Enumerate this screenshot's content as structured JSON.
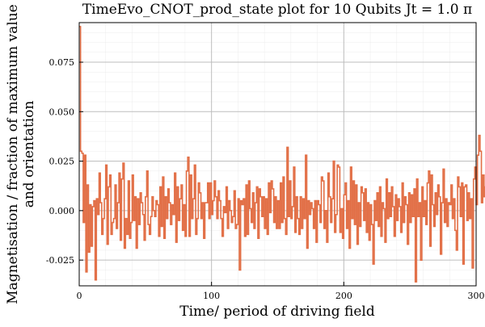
{
  "chart_data": {
    "type": "line",
    "step": true,
    "title": "TimeEvo_CNOT_prod_state plot for 10 Qubits Jt = 1.0 π",
    "xlabel": "Time/ period of driving field",
    "ylabel_lines": [
      "Magnetisation / fraction of maximum value",
      "and orientation"
    ],
    "xlim": [
      0,
      300
    ],
    "ylim": [
      -0.038,
      0.095
    ],
    "xticks": [
      0,
      100,
      200,
      300
    ],
    "xtick_labels": [
      "0",
      "100",
      "200",
      "300"
    ],
    "yticks": [
      -0.025,
      0.0,
      0.025,
      0.05,
      0.075
    ],
    "ytick_labels": [
      "-0.025",
      "0.000",
      "0.025",
      "0.050",
      "0.075"
    ],
    "grid": true,
    "minor_grid": true,
    "legend": "none",
    "series": [
      {
        "color": "#e26f46",
        "x_start": 0,
        "x_step": 1,
        "values": [
          0.093,
          0.03,
          0.029,
          -0.006,
          0.028,
          -0.031,
          0.013,
          -0.021,
          0.003,
          -0.018,
          0.002,
          0.005,
          -0.035,
          0.006,
          -0.002,
          0.019,
          0.004,
          -0.012,
          -0.004,
          0.006,
          0.023,
          -0.017,
          0.012,
          0.018,
          -0.012,
          -0.006,
          -0.004,
          0.013,
          -0.009,
          0.004,
          0.019,
          -0.015,
          0.016,
          0.024,
          -0.019,
          -0.004,
          -0.012,
          0.015,
          -0.014,
          -0.006,
          0.018,
          -0.005,
          0.007,
          -0.019,
          0.006,
          -0.007,
          0.009,
          0.004,
          -0.002,
          -0.015,
          0.007,
          0.02,
          -0.007,
          -0.012,
          -0.003,
          0.007,
          0.0,
          -0.003,
          0.005,
          0.003,
          -0.013,
          0.012,
          -0.008,
          0.017,
          -0.014,
          0.007,
          -0.004,
          0.011,
          0.004,
          -0.007,
          0.003,
          -0.002,
          0.019,
          -0.016,
          0.012,
          -0.005,
          0.006,
          0.013,
          -0.01,
          0.003,
          -0.013,
          0.02,
          0.027,
          -0.013,
          0.018,
          -0.004,
          0.006,
          0.023,
          -0.012,
          -0.004,
          0.014,
          0.009,
          -0.004,
          0.004,
          -0.014,
          0.004,
          0.004,
          0.014,
          -0.004,
          0.014,
          -0.002,
          0.005,
          0.015,
          0.007,
          -0.004,
          0.01,
          0.005,
          -0.004,
          -0.013,
          0.002,
          -0.001,
          0.012,
          -0.009,
          0.005,
          0.0,
          -0.006,
          -0.003,
          0.01,
          -0.009,
          -0.007,
          0.006,
          -0.03,
          0.005,
          0.003,
          0.006,
          -0.013,
          0.013,
          -0.012,
          0.015,
          0.001,
          -0.006,
          0.009,
          -0.009,
          0.004,
          0.012,
          -0.014,
          0.011,
          0.007,
          -0.003,
          0.007,
          -0.009,
          0.006,
          -0.012,
          0.014,
          -0.001,
          0.015,
          0.011,
          -0.006,
          0.007,
          -0.009,
          0.005,
          -0.009,
          0.014,
          -0.006,
          0.017,
          -0.004,
          -0.012,
          0.032,
          -0.003,
          0.015,
          -0.004,
          0.002,
          0.022,
          -0.011,
          0.007,
          -0.004,
          -0.012,
          0.007,
          -0.009,
          0.006,
          -0.004,
          0.028,
          -0.019,
          0.005,
          -0.002,
          0.004,
          0.001,
          -0.009,
          0.005,
          -0.016,
          0.005,
          0.003,
          -0.006,
          0.017,
          0.015,
          -0.009,
          0.0,
          -0.016,
          0.019,
          0.007,
          -0.006,
          0.006,
          0.025,
          -0.011,
          -0.002,
          0.023,
          0.022,
          -0.011,
          0.001,
          -0.014,
          0.008,
          0.014,
          -0.009,
          0.005,
          -0.019,
          0.022,
          -0.004,
          0.015,
          -0.007,
          0.013,
          -0.017,
          0.004,
          -0.008,
          0.012,
          0.009,
          -0.005,
          0.011,
          -0.011,
          0.004,
          -0.015,
          0.003,
          -0.007,
          -0.027,
          0.005,
          -0.005,
          0.009,
          -0.008,
          0.012,
          -0.013,
          0.004,
          0.001,
          -0.016,
          0.016,
          -0.004,
          0.009,
          -0.003,
          0.012,
          0.002,
          -0.013,
          0.008,
          -0.005,
          0.006,
          0.002,
          -0.011,
          0.014,
          -0.006,
          0.007,
          0.003,
          -0.017,
          0.009,
          -0.006,
          0.008,
          -0.003,
          0.011,
          -0.036,
          0.016,
          -0.003,
          0.004,
          -0.025,
          0.012,
          -0.003,
          0.005,
          -0.007,
          0.014,
          0.02,
          -0.018,
          0.018,
          0.003,
          -0.008,
          0.009,
          -0.002,
          0.013,
          0.007,
          -0.022,
          0.004,
          0.021,
          -0.006,
          0.006,
          -0.008,
          0.004,
          0.003,
          0.013,
          -0.004,
          0.006,
          -0.01,
          -0.02,
          0.017,
          0.012,
          -0.003,
          0.014,
          -0.027,
          0.012,
          0.013,
          -0.005,
          0.009,
          -0.004,
          0.006,
          -0.029,
          0.016,
          0.022,
          0.003,
          0.028,
          0.038,
          0.03,
          0.004,
          0.018,
          0.007,
          0.012,
          0.01
        ]
      }
    ]
  }
}
